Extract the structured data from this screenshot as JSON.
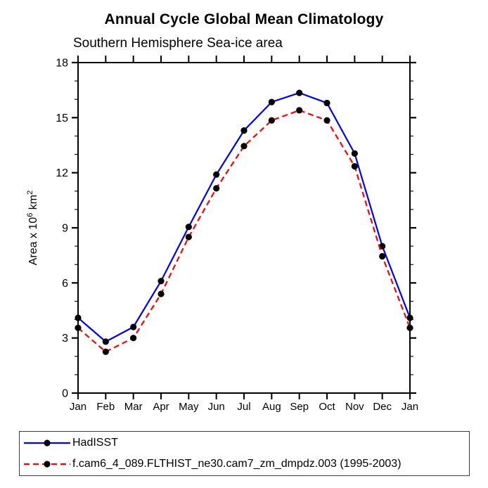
{
  "page": {
    "title": "Annual Cycle Global Mean Climatology",
    "subtitle": "Southern Hemisphere Sea-ice area"
  },
  "chart_data": {
    "type": "line",
    "title": "Annual Cycle Global Mean Climatology",
    "subtitle": "Southern Hemisphere Sea-ice area",
    "xlabel": "",
    "ylabel": "Area x 10^6 km^2",
    "ylabel_parts": [
      {
        "t": "Area x 10"
      },
      {
        "t": "6",
        "sup": true
      },
      {
        "t": " km"
      },
      {
        "t": "2",
        "sup": true
      }
    ],
    "x_categories": [
      "Jan",
      "Feb",
      "Mar",
      "Apr",
      "May",
      "Jun",
      "Jul",
      "Aug",
      "Sep",
      "Oct",
      "Nov",
      "Dec",
      "Jan"
    ],
    "ylim": [
      0,
      18
    ],
    "yticks_major": [
      0,
      3,
      6,
      9,
      12,
      15,
      18
    ],
    "ytick_minor_step": 1,
    "grid": false,
    "legend_position": "bottom-left-box",
    "series": [
      {
        "name": "HadISST",
        "color": "#0000ff",
        "style": "solid",
        "marker": "filled-circle",
        "marker_color": "#000000",
        "values": [
          4.1,
          2.8,
          3.6,
          6.1,
          9.05,
          11.9,
          14.3,
          15.85,
          16.35,
          15.8,
          13.05,
          8.0,
          4.1
        ]
      },
      {
        "name": "f.cam6_4_089.FLTHIST_ne30.cam7_zm_dmpdz.003 (1995-2003)",
        "color": "#ff0000",
        "style": "dashed",
        "marker": "filled-circle",
        "marker_color": "#000000",
        "values": [
          3.55,
          2.25,
          3.0,
          5.4,
          8.5,
          11.15,
          13.45,
          14.85,
          15.4,
          14.85,
          12.35,
          7.45,
          3.55
        ]
      }
    ]
  }
}
